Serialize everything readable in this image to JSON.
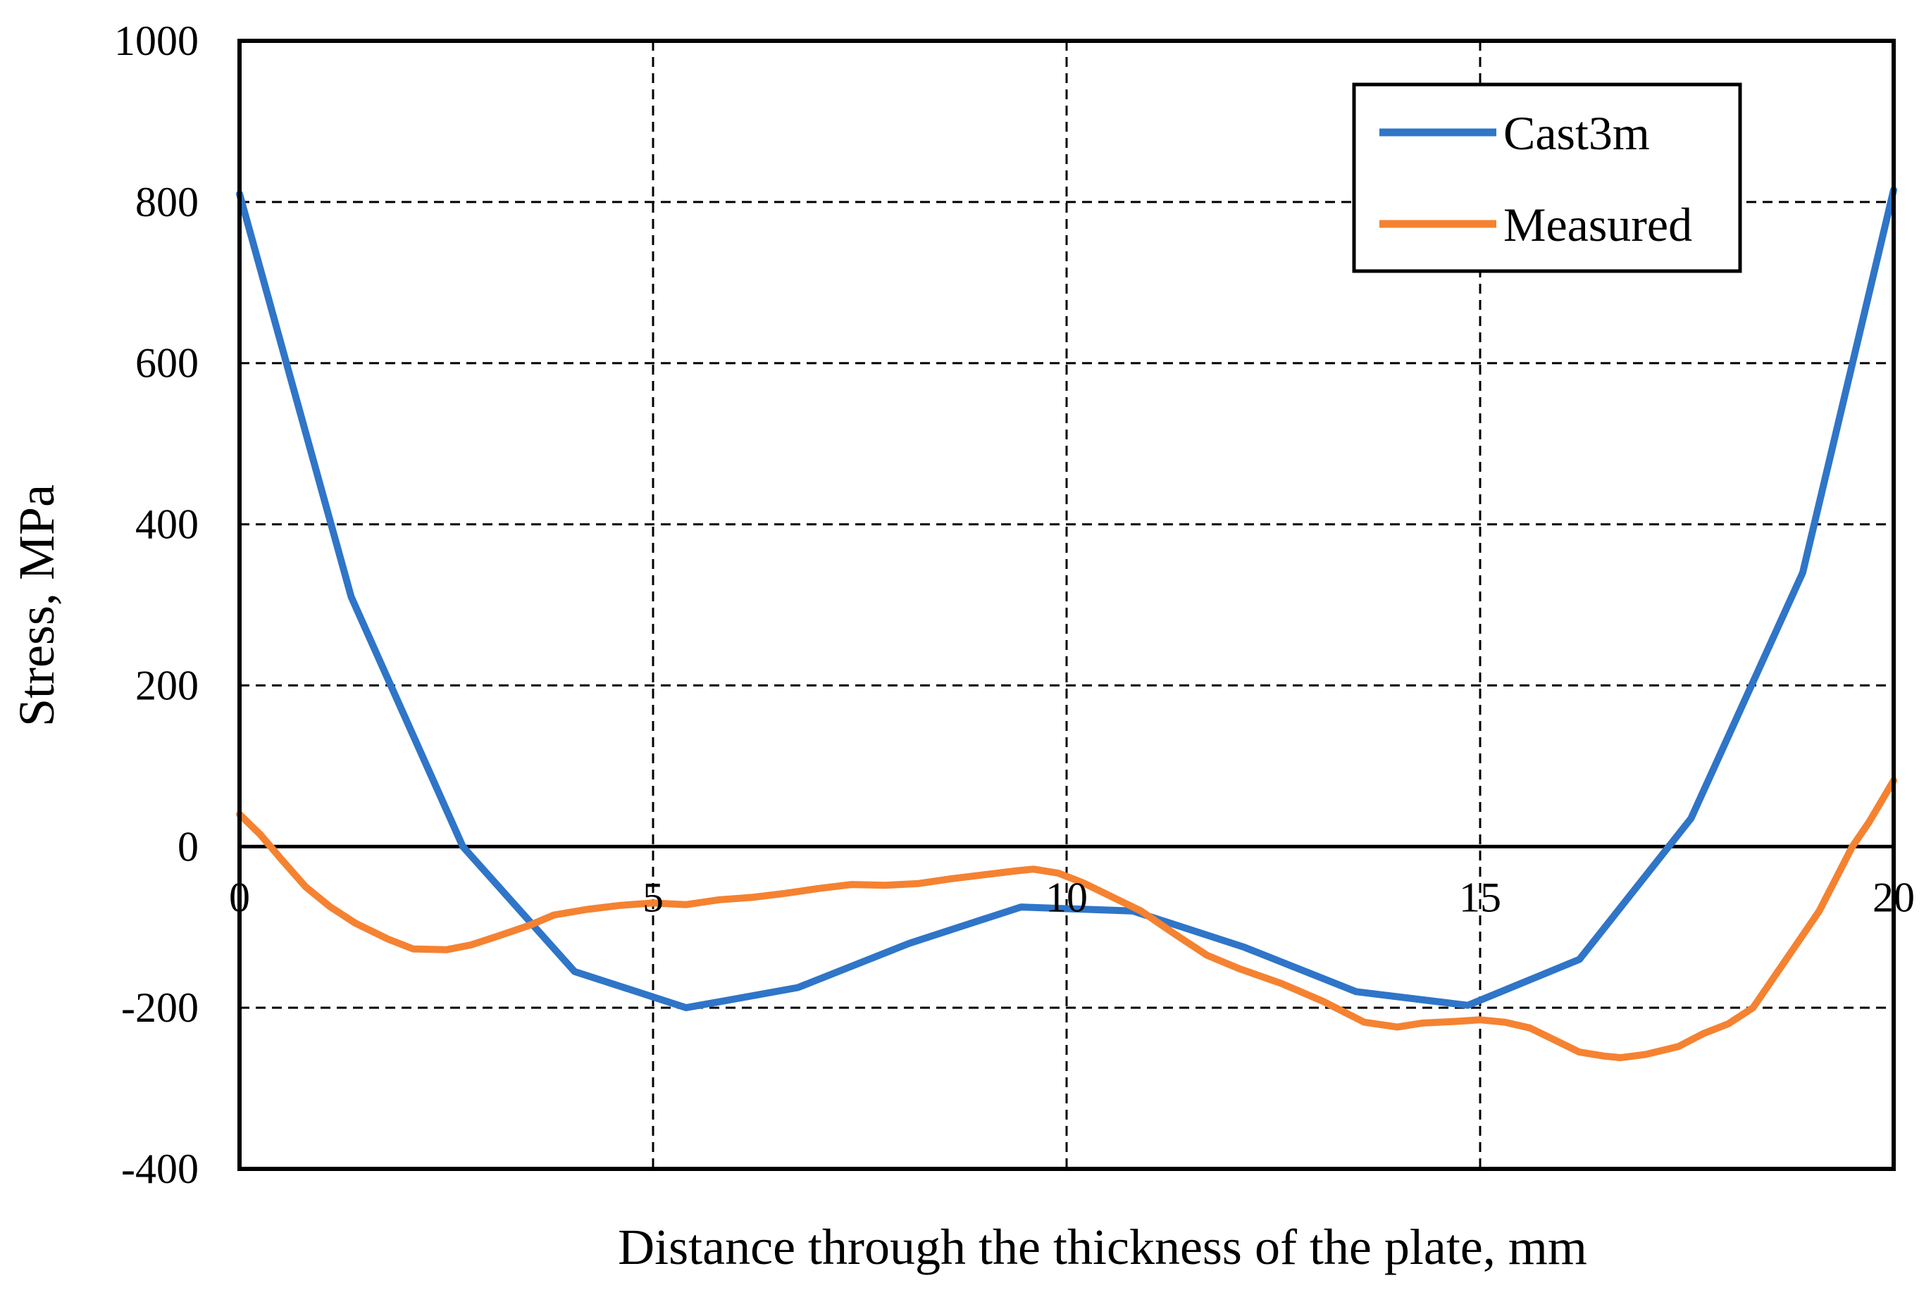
{
  "chart_data": {
    "type": "line",
    "title": "",
    "xlabel": "Distance through the thickness of the plate, mm",
    "ylabel": "Stress, MPa",
    "xlim": [
      0,
      20
    ],
    "ylim": [
      -400,
      1000
    ],
    "x_ticks": [
      0,
      5,
      10,
      15,
      20
    ],
    "x_tick_labels": [
      "0",
      "5",
      "10",
      "15",
      "20"
    ],
    "y_ticks": [
      -400,
      -200,
      0,
      200,
      400,
      600,
      800,
      1000
    ],
    "y_tick_labels": [
      "-400",
      "-200",
      "0",
      "200",
      "400",
      "600",
      "800",
      "1000"
    ],
    "grid": true,
    "legend_position": "top-right",
    "series": [
      {
        "name": "Cast3m",
        "color": "#2f75c8",
        "x": [
          0,
          1.35,
          2.7,
          4.05,
          5.4,
          6.75,
          8.1,
          9.45,
          10.8,
          12.15,
          13.5,
          14.85,
          16.2,
          17.55,
          18.9,
          20
        ],
        "y": [
          810,
          310,
          0,
          -155,
          -200,
          -175,
          -120,
          -75,
          -80,
          -125,
          -180,
          -197,
          -140,
          35,
          340,
          815
        ]
      },
      {
        "name": "Measured",
        "color": "#f58231",
        "x": [
          0,
          0.25,
          0.5,
          0.8,
          1.1,
          1.4,
          1.8,
          2.1,
          2.5,
          2.8,
          3.1,
          3.5,
          3.8,
          4.2,
          4.6,
          5.0,
          5.4,
          5.8,
          6.2,
          6.6,
          7.0,
          7.4,
          7.8,
          8.2,
          8.6,
          9.0,
          9.4,
          9.6,
          9.9,
          10.2,
          10.5,
          10.9,
          11.3,
          11.7,
          12.1,
          12.6,
          13.1,
          13.6,
          14.0,
          14.3,
          14.7,
          15.0,
          15.3,
          15.6,
          15.9,
          16.2,
          16.5,
          16.7,
          17.0,
          17.4,
          17.7,
          18.0,
          18.3,
          18.5,
          18.7,
          18.9,
          19.1,
          19.3,
          19.5,
          19.7,
          20.0
        ],
        "y": [
          40,
          15,
          -15,
          -50,
          -75,
          -95,
          -115,
          -127,
          -128,
          -122,
          -112,
          -98,
          -85,
          -78,
          -73,
          -70,
          -72,
          -66,
          -63,
          -58,
          -52,
          -47,
          -48,
          -46,
          -40,
          -35,
          -30,
          -28,
          -33,
          -45,
          -60,
          -80,
          -108,
          -135,
          -152,
          -170,
          -192,
          -218,
          -224,
          -219,
          -217,
          -215,
          -218,
          -225,
          -240,
          -255,
          -260,
          -262,
          -258,
          -248,
          -232,
          -220,
          -200,
          -170,
          -140,
          -110,
          -80,
          -40,
          0,
          30,
          82
        ]
      }
    ]
  }
}
